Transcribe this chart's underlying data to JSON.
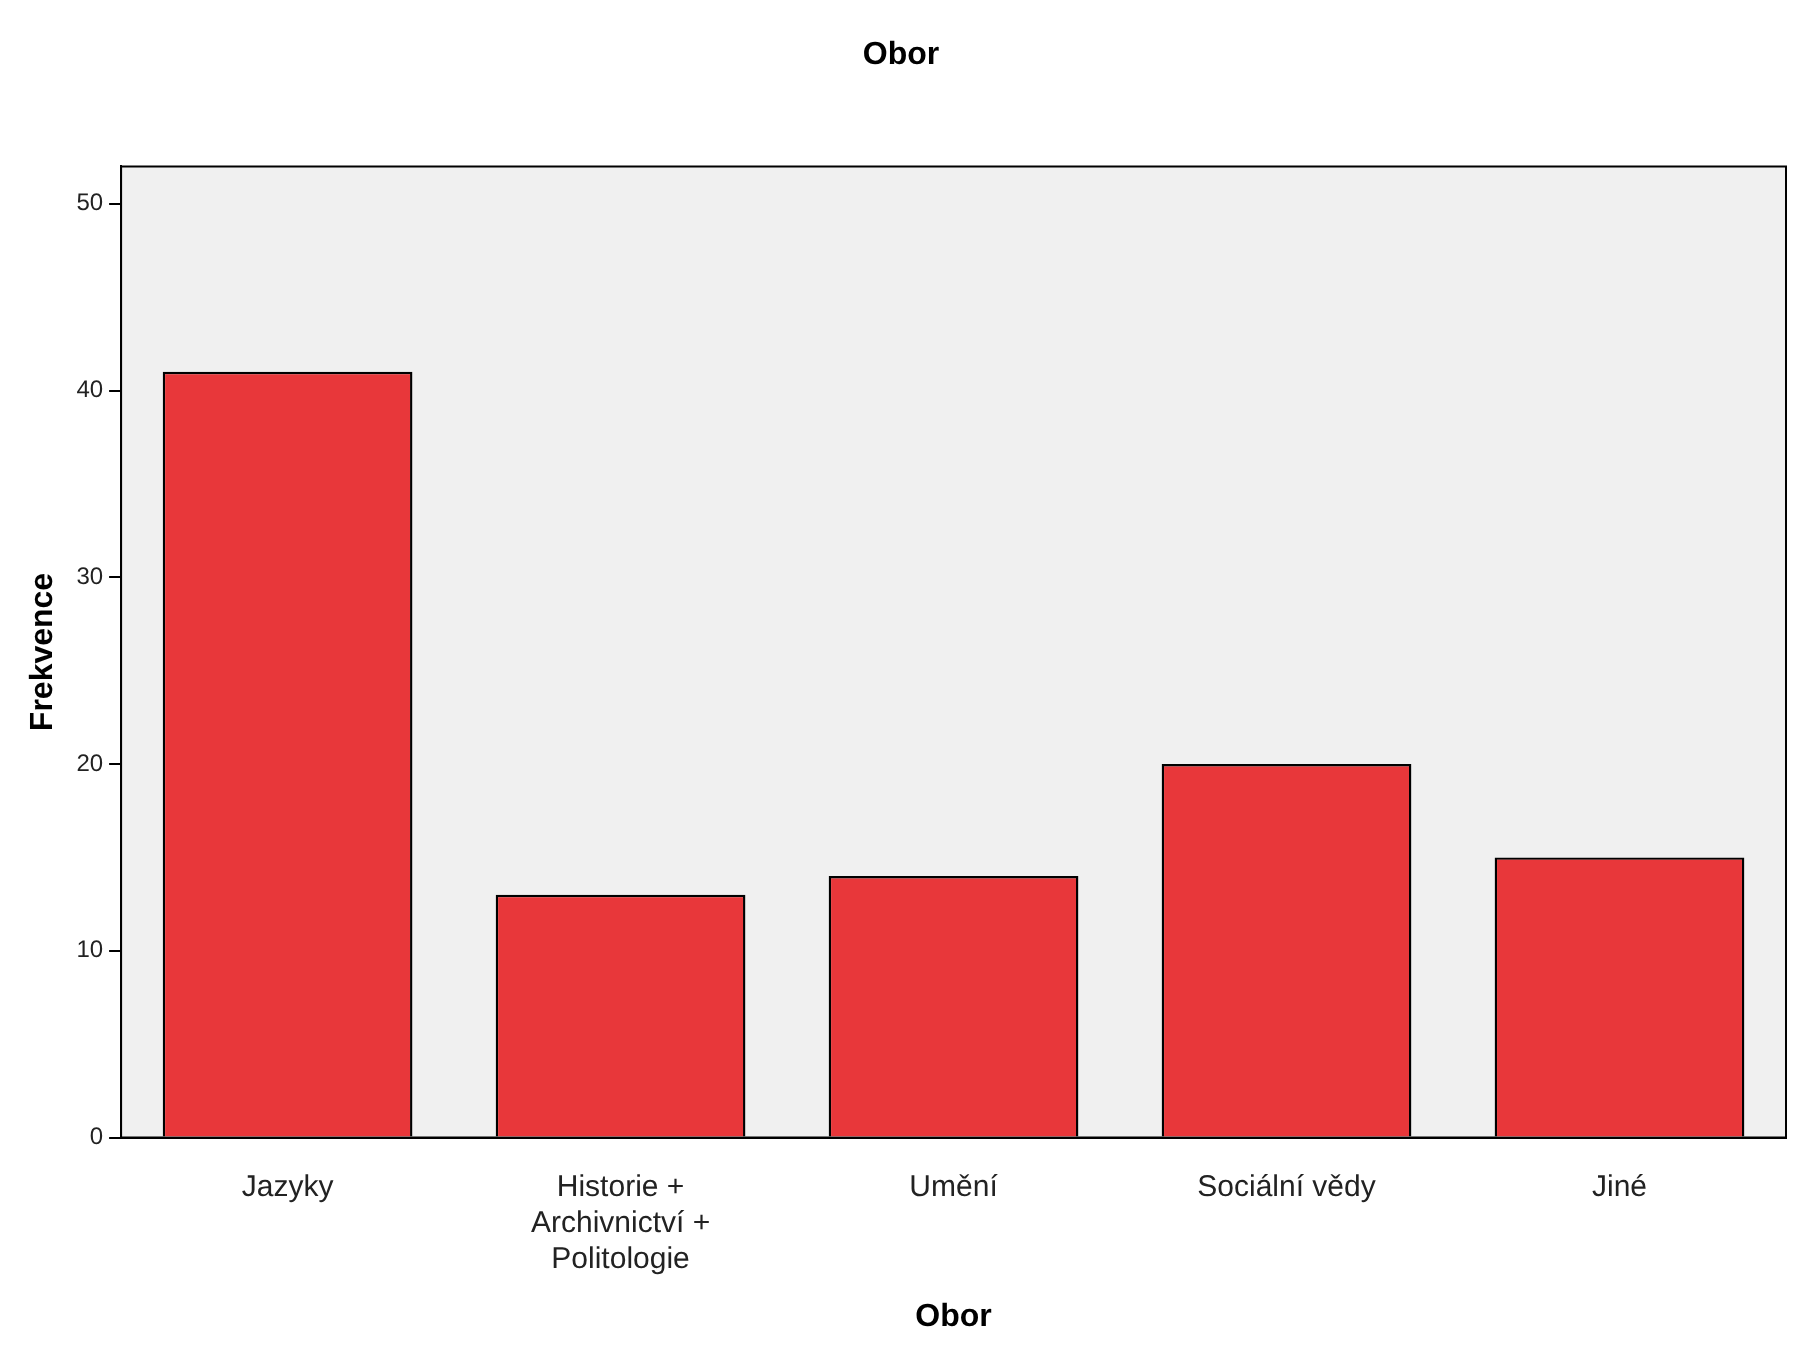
{
  "chart_data": {
    "type": "bar",
    "title": "Obor",
    "xlabel": "Obor",
    "ylabel": "Frekvence",
    "categories": [
      "Jazyky",
      "Historie + Archivnictví + Politologie",
      "Umění",
      "Sociální vědy",
      "Jiné"
    ],
    "values": [
      41,
      13,
      14,
      20,
      15
    ],
    "color": "#e8373a",
    "ylim": [
      0,
      52
    ],
    "yticks": [
      0,
      10,
      20,
      30,
      40,
      50
    ],
    "grid": false,
    "legend": false
  }
}
